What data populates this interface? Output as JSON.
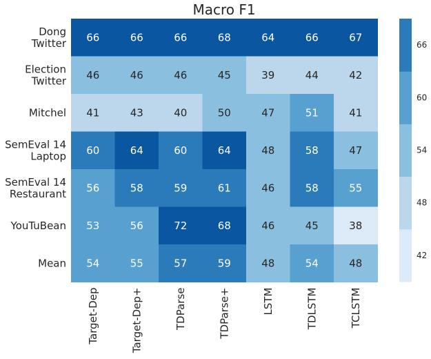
{
  "chart_data": {
    "type": "heatmap",
    "title": "Macro F1",
    "rows": [
      [
        "Dong",
        "Twitter"
      ],
      [
        "Election",
        "Twitter"
      ],
      [
        "Mitchel"
      ],
      [
        "SemEval 14",
        "Laptop"
      ],
      [
        "SemEval 14",
        "Restaurant"
      ],
      [
        "YouTuBean"
      ],
      [
        "Mean"
      ]
    ],
    "columns": [
      "Target-Dep",
      "Target-Dep+",
      "TDParse",
      "TDParse+",
      "LSTM",
      "TDLSTM",
      "TCLSTM"
    ],
    "values": [
      [
        66,
        66,
        66,
        68,
        64,
        66,
        67
      ],
      [
        46,
        46,
        46,
        45,
        39,
        44,
        42
      ],
      [
        41,
        43,
        40,
        50,
        47,
        51,
        41
      ],
      [
        60,
        64,
        60,
        64,
        48,
        58,
        47
      ],
      [
        56,
        58,
        59,
        61,
        46,
        58,
        55
      ],
      [
        53,
        56,
        72,
        68,
        46,
        45,
        38
      ],
      [
        54,
        55,
        57,
        59,
        48,
        54,
        48
      ]
    ],
    "colorbar": {
      "ticks": [
        42,
        48,
        54,
        60,
        66
      ],
      "colors": [
        "#dce9f6",
        "#bcd6eb",
        "#8bbfdf",
        "#57a0d0",
        "#2b7bba",
        "#0b56a0"
      ],
      "text_colors": {
        "light": "#ffffff",
        "dark": "#262626"
      }
    },
    "grid": false,
    "legend": "colorbar-right"
  }
}
